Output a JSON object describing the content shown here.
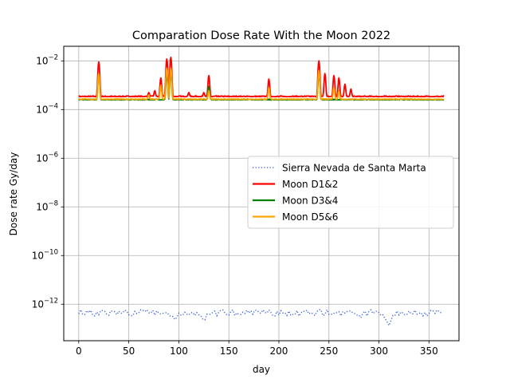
{
  "chart_data": {
    "type": "line",
    "title": "Comparation Dose Rate With the Moon 2022",
    "xlabel": "day",
    "ylabel": "Dose rate Gy/day",
    "xlim": [
      -15,
      380
    ],
    "ylim_log10": [
      -13.5,
      -1.4
    ],
    "yscale": "log",
    "grid": true,
    "legend_position": "right",
    "x_ticks": [
      0,
      50,
      100,
      150,
      200,
      250,
      300,
      350
    ],
    "y_ticks": [
      {
        "exp": -2,
        "label": "10",
        "sup": "−2"
      },
      {
        "exp": -4,
        "label": "10",
        "sup": "−4"
      },
      {
        "exp": -6,
        "label": "10",
        "sup": "−6"
      },
      {
        "exp": -8,
        "label": "10",
        "sup": "−8"
      },
      {
        "exp": -10,
        "label": "10",
        "sup": "−10"
      },
      {
        "exp": -12,
        "label": "10",
        "sup": "−12"
      }
    ],
    "series": [
      {
        "name": "Sierra Nevada de Santa Marta",
        "color": "#4169e1",
        "style": "dotted",
        "base": 5e-13,
        "x_range": [
          0,
          365
        ],
        "dips": [
          [
            95,
            2.5e-13
          ],
          [
            125,
            3e-13
          ],
          [
            310,
            1.6e-13
          ],
          [
            280,
            3e-13
          ]
        ]
      },
      {
        "name": "Moon D1&2",
        "color": "#ff0000",
        "style": "solid",
        "base": 0.00034,
        "x_range": [
          0,
          365
        ],
        "peaks": [
          [
            20,
            0.009
          ],
          [
            70,
            0.0005
          ],
          [
            76,
            0.0006
          ],
          [
            82,
            0.002
          ],
          [
            88,
            0.012
          ],
          [
            92,
            0.014
          ],
          [
            110,
            0.0005
          ],
          [
            125,
            0.0005
          ],
          [
            130,
            0.0025
          ],
          [
            165,
            0.00035
          ],
          [
            190,
            0.0018
          ],
          [
            240,
            0.01
          ],
          [
            246,
            0.003
          ],
          [
            255,
            0.0025
          ],
          [
            260,
            0.002
          ],
          [
            266,
            0.0011
          ],
          [
            272,
            0.0007
          ]
        ]
      },
      {
        "name": "Moon D3&4",
        "color": "#008000",
        "style": "solid",
        "base": 0.00025,
        "x_range": [
          0,
          365
        ],
        "peaks": [
          [
            20,
            0.003
          ],
          [
            88,
            0.003
          ],
          [
            92,
            0.0035
          ],
          [
            130,
            0.0009
          ],
          [
            240,
            0.003
          ]
        ]
      },
      {
        "name": "Moon D5&6",
        "color": "#ffa500",
        "style": "solid",
        "base": 0.00026,
        "x_range": [
          0,
          365
        ],
        "peaks": [
          [
            20,
            0.003
          ],
          [
            70,
            0.0004
          ],
          [
            82,
            0.001
          ],
          [
            88,
            0.005
          ],
          [
            92,
            0.005
          ],
          [
            130,
            0.0006
          ],
          [
            190,
            0.0008
          ],
          [
            240,
            0.004
          ],
          [
            255,
            0.0008
          ],
          [
            260,
            0.0006
          ]
        ]
      }
    ]
  }
}
